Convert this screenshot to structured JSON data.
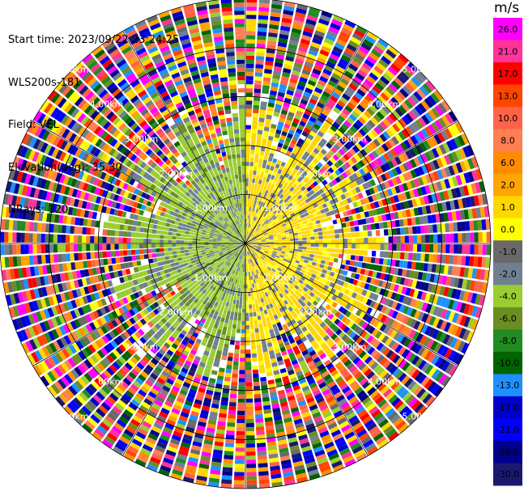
{
  "info": {
    "start_time": "Start time: 2023/09/22 23:24:25",
    "instrument": "WLS200s-181",
    "field": "Field: VEL",
    "elevation": "Elevation(deg): 35.30",
    "nrays": "NRays: 120"
  },
  "chart_data": {
    "type": "heatmap",
    "projection": "polar-ppi",
    "field": "VEL",
    "n_rays": 120,
    "elevation_deg": 35.3,
    "range_rings_km": [
      1.0,
      2.0,
      3.0,
      4.0,
      5.0
    ],
    "ring_labels": [
      "1.00km",
      "2.00km",
      "3.00km",
      "4.00km",
      "5.00km"
    ],
    "max_range_km": 5.0,
    "spokes_deg": [
      0,
      30,
      60,
      90,
      120,
      150,
      180,
      210,
      240,
      270,
      300,
      330
    ],
    "colorbar": {
      "unit": "m/s",
      "ticks": [
        26.0,
        21.0,
        17.0,
        13.0,
        10.0,
        8.0,
        6.0,
        2.0,
        1.0,
        0.0,
        -1.0,
        -2.0,
        -4.0,
        -6.0,
        -8.0,
        -10.0,
        -13.0,
        -17.0,
        -21.0,
        -26.0,
        -30.0
      ],
      "tick_labels": [
        "26.0",
        "21.0",
        "17.0",
        "13.0",
        "10.0",
        "8.0",
        "6.0",
        "2.0",
        "1.0",
        "0.0",
        "-1.0",
        "-2.0",
        "-4.0",
        "-6.0",
        "-8.0",
        "-10.0",
        "-13.0",
        "-17.0",
        "-21.0",
        "-26.0",
        "-30.0"
      ],
      "colors": [
        "#ff00ff",
        "#ff3399",
        "#ff0000",
        "#ff4500",
        "#ff6347",
        "#ff7f50",
        "#ff8c00",
        "#ffa500",
        "#ffd700",
        "#ffff00",
        "#696969",
        "#708090",
        "#9acd32",
        "#6b8e23",
        "#228b22",
        "#006400",
        "#1e90ff",
        "#0000cd",
        "#0000ff",
        "#00008b",
        "#191970"
      ]
    },
    "regions": {
      "near_west": "#9acd32",
      "near_west_alt": "#6b8e23",
      "near_east": "#ffd700",
      "near_east_alt": "#ffff00",
      "mixed": "#708090"
    }
  }
}
